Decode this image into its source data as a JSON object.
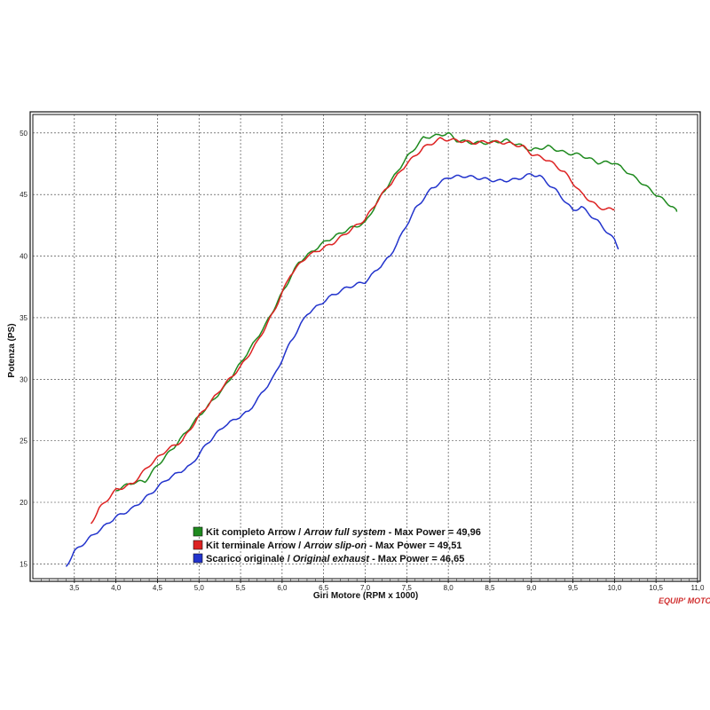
{
  "chart_data": {
    "type": "line",
    "title": "",
    "xlabel": "Giri Motore (RPM x 1000)",
    "ylabel": "Potenza (PS)",
    "xlim": [
      3.0,
      11.0
    ],
    "ylim": [
      13.8,
      51.5
    ],
    "x_ticks": [
      "3,5",
      "4,0",
      "4,5",
      "5,0",
      "5,5",
      "6,0",
      "6,5",
      "7,0",
      "7,5",
      "8,0",
      "8,5",
      "9,0",
      "9,5",
      "10,0",
      "10,5",
      "11,0"
    ],
    "y_ticks": [
      "15",
      "20",
      "25",
      "30",
      "35",
      "40",
      "45",
      "50"
    ],
    "grid": true,
    "legend_position": "bottom-center",
    "series": [
      {
        "name": "Kit completo Arrow",
        "name_en": "Arrow full system",
        "max_label": "Max Power = 49,96",
        "color": "#1f8a1f",
        "x": [
          4.0,
          4.2,
          4.35,
          4.5,
          4.7,
          5.0,
          5.3,
          5.5,
          5.8,
          6.0,
          6.2,
          6.5,
          6.8,
          7.0,
          7.2,
          7.5,
          7.7,
          8.0,
          8.1,
          8.3,
          8.5,
          8.7,
          8.9,
          9.0,
          9.2,
          9.4,
          9.6,
          9.8,
          10.0,
          10.3,
          10.5,
          10.7,
          10.75
        ],
        "y": [
          21.0,
          21.6,
          21.7,
          23.0,
          24.5,
          27.0,
          29.3,
          31.3,
          34.4,
          37.0,
          39.5,
          41.1,
          42.2,
          42.7,
          45.0,
          48.0,
          49.6,
          49.96,
          49.4,
          49.2,
          49.2,
          49.4,
          48.9,
          48.6,
          48.9,
          48.4,
          48.2,
          47.6,
          47.6,
          46.1,
          45.0,
          44.0,
          43.6
        ]
      },
      {
        "name": "Kit terminale Arrow",
        "name_en": "Arrow slip-on",
        "max_label": "Max Power = 49,51",
        "color": "#dd2222",
        "x": [
          3.7,
          3.8,
          4.0,
          4.2,
          4.4,
          4.6,
          4.8,
          5.0,
          5.3,
          5.5,
          5.7,
          5.9,
          6.1,
          6.3,
          6.6,
          6.8,
          7.0,
          7.2,
          7.5,
          7.7,
          7.9,
          8.1,
          8.3,
          8.5,
          8.7,
          8.9,
          9.0,
          9.2,
          9.4,
          9.6,
          9.8,
          9.9,
          10.0
        ],
        "y": [
          18.3,
          19.5,
          21.0,
          21.5,
          23.0,
          24.2,
          25.0,
          27.0,
          29.5,
          31.0,
          33.0,
          35.5,
          38.5,
          40.0,
          41.0,
          42.0,
          43.0,
          45.0,
          47.5,
          48.8,
          49.51,
          49.4,
          49.2,
          49.3,
          49.2,
          48.9,
          48.3,
          47.8,
          46.8,
          45.1,
          44.0,
          43.8,
          43.8
        ]
      },
      {
        "name": "Scarico originale",
        "name_en": "Original exhaust",
        "max_label": "Max Power = 46,65",
        "color": "#2233cc",
        "x": [
          3.4,
          3.5,
          3.7,
          4.0,
          4.2,
          4.4,
          4.6,
          4.9,
          5.1,
          5.3,
          5.6,
          5.9,
          6.1,
          6.3,
          6.6,
          6.8,
          7.0,
          7.3,
          7.6,
          7.8,
          8.0,
          8.2,
          8.4,
          8.6,
          8.8,
          9.0,
          9.1,
          9.3,
          9.5,
          9.6,
          9.8,
          10.0,
          10.05
        ],
        "y": [
          14.8,
          16.0,
          17.2,
          18.8,
          19.5,
          20.6,
          21.8,
          23.0,
          24.8,
          26.2,
          27.4,
          30.2,
          33.0,
          35.3,
          36.8,
          37.5,
          37.9,
          40.0,
          43.8,
          45.5,
          46.4,
          46.5,
          46.3,
          46.1,
          46.2,
          46.65,
          46.5,
          45.3,
          43.7,
          44.0,
          42.8,
          41.3,
          40.6
        ]
      }
    ],
    "watermark": "EQUIP' MOTO"
  }
}
